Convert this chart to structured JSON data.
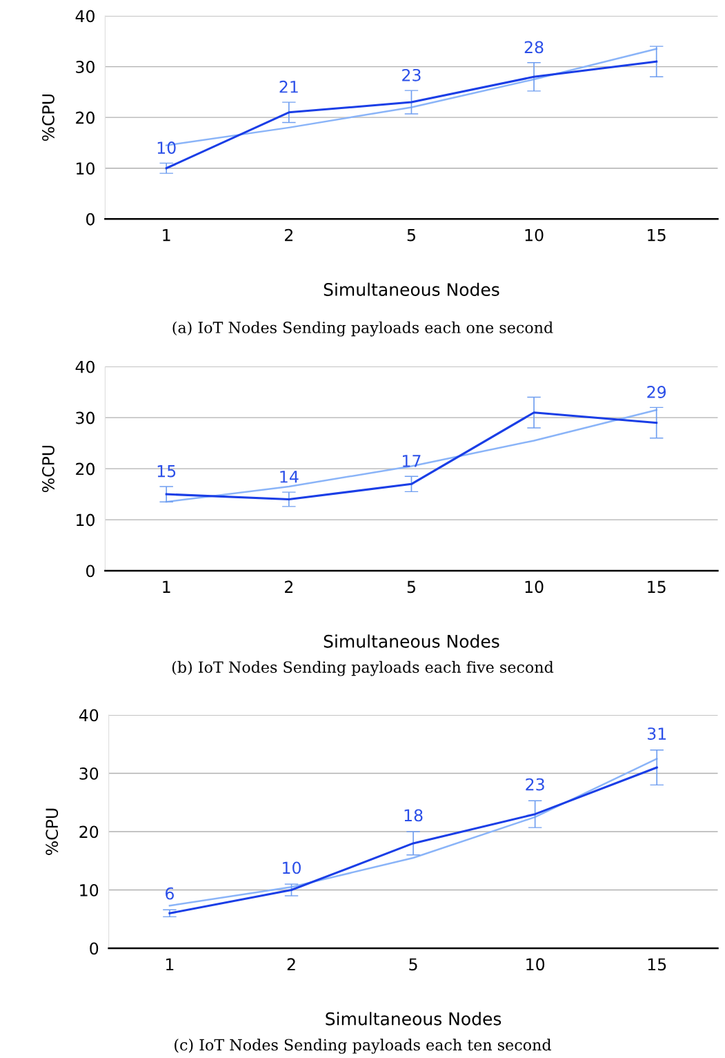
{
  "chart_data": [
    {
      "type": "line",
      "xlabel": "Simultaneous Nodes",
      "ylabel": "%CPU",
      "categories": [
        "1",
        "2",
        "5",
        "10",
        "15"
      ],
      "ylim": [
        0,
        40
      ],
      "yticks": [
        0,
        10,
        20,
        30,
        40
      ],
      "grid": "y",
      "legend": false,
      "marker": "none",
      "line_style": "solid",
      "annotations": [
        "(a) IoT Nodes Sending payloads each one second"
      ],
      "series": [
        {
          "color": "#1a3ee6",
          "values": [
            10,
            21,
            23,
            28,
            31
          ],
          "errors": [
            1,
            2,
            2.3,
            2.8,
            3
          ],
          "value_labels": [
            "10",
            "21",
            "23",
            "28",
            null
          ]
        },
        {
          "type": "line",
          "color": "#8ab4f8",
          "values": [
            14.5,
            18,
            22,
            27.5,
            33.5
          ]
        }
      ]
    },
    {
      "type": "line",
      "xlabel": "Simultaneous Nodes",
      "ylabel": "%CPU",
      "categories": [
        "1",
        "2",
        "5",
        "10",
        "15"
      ],
      "ylim": [
        0,
        40
      ],
      "yticks": [
        0,
        10,
        20,
        30,
        40
      ],
      "grid": "y",
      "legend": false,
      "marker": "none",
      "line_style": "solid",
      "annotations": [
        "(b) IoT Nodes Sending payloads each five second"
      ],
      "series": [
        {
          "color": "#1a3ee6",
          "values": [
            15,
            14,
            17,
            31,
            29
          ],
          "errors": [
            1.5,
            1.4,
            1.5,
            3,
            3
          ],
          "value_labels": [
            "15",
            "14",
            "17",
            null,
            "29"
          ]
        },
        {
          "type": "line",
          "color": "#8ab4f8",
          "values": [
            13.5,
            16.5,
            20.5,
            25.5,
            31.5
          ]
        }
      ]
    },
    {
      "type": "line",
      "xlabel": "Simultaneous Nodes",
      "ylabel": "%CPU",
      "categories": [
        "1",
        "2",
        "5",
        "10",
        "15"
      ],
      "ylim": [
        0,
        40
      ],
      "yticks": [
        0,
        10,
        20,
        30,
        40
      ],
      "grid": "y",
      "legend": false,
      "marker": "none",
      "line_style": "solid",
      "annotations": [
        "(c) IoT Nodes Sending payloads each ten second"
      ],
      "series": [
        {
          "color": "#1a3ee6",
          "values": [
            6,
            10,
            18,
            23,
            31
          ],
          "errors": [
            0.6,
            1,
            2,
            2.3,
            3
          ],
          "value_labels": [
            "6",
            "10",
            "18",
            "23",
            "31"
          ]
        },
        {
          "type": "line",
          "color": "#8ab4f8",
          "values": [
            7.3,
            10.5,
            15.5,
            22.5,
            32.5
          ]
        }
      ]
    }
  ]
}
